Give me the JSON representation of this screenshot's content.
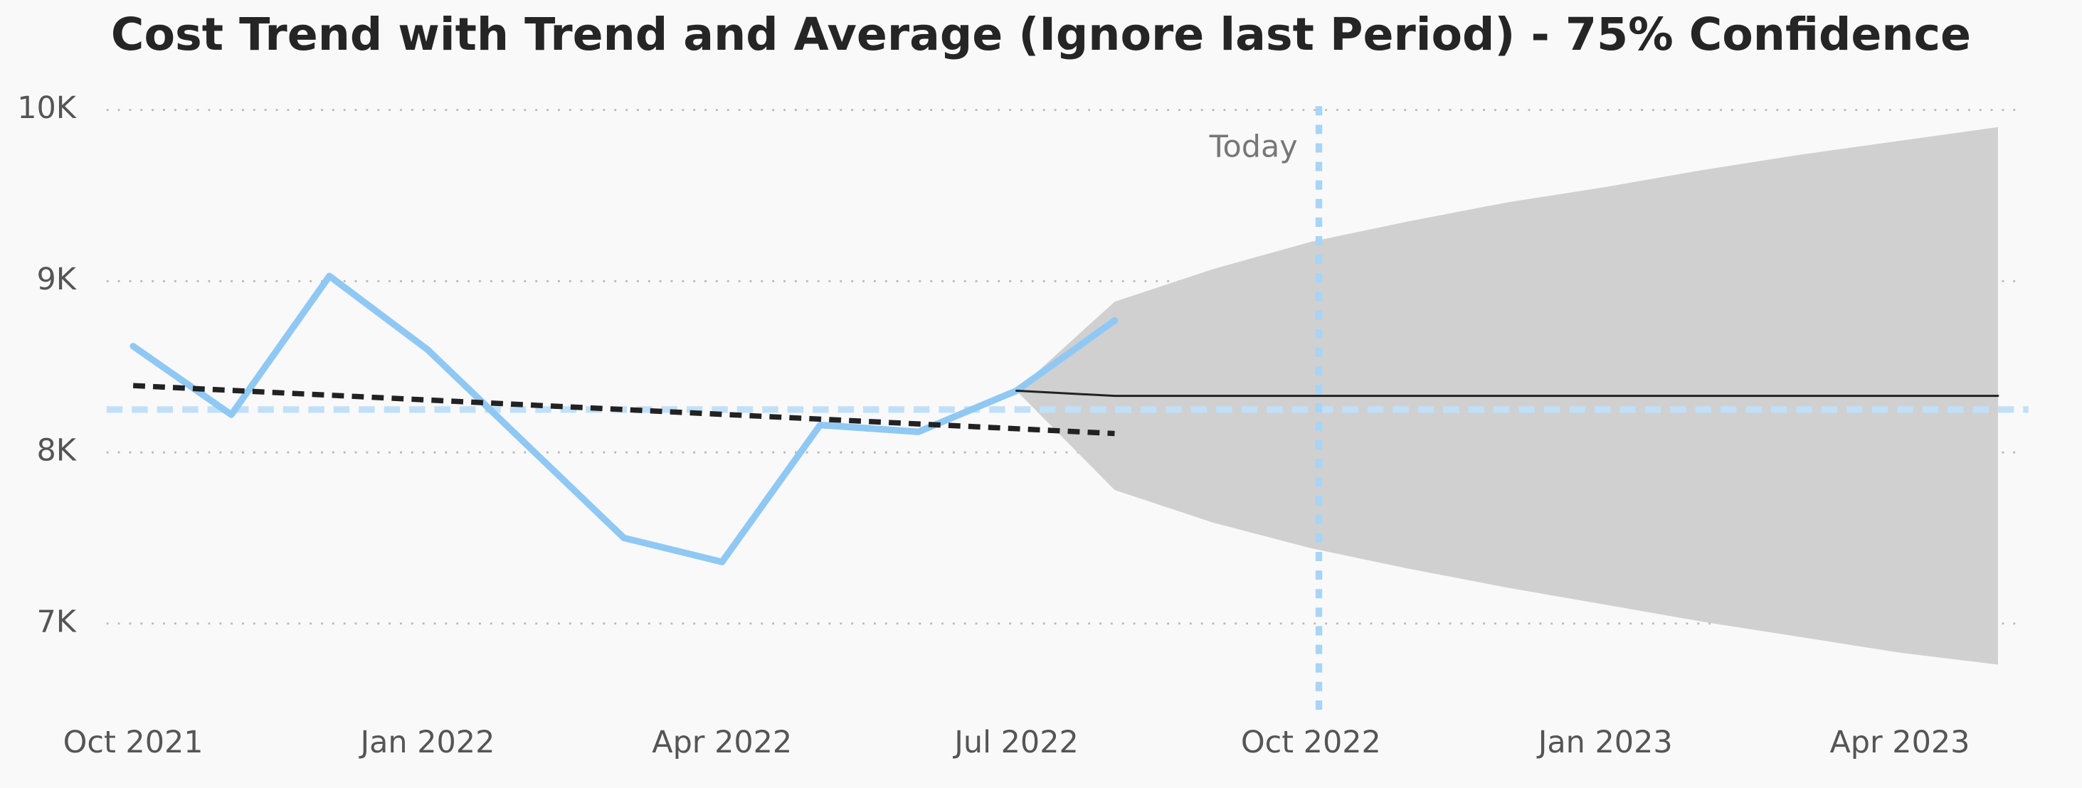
{
  "chart_data": {
    "type": "line",
    "title": "Cost Trend with Trend and Average (Ignore last Period) - 75% Confidence",
    "x": [
      "2021-10",
      "2021-11",
      "2021-12",
      "2022-01",
      "2022-02",
      "2022-03",
      "2022-04",
      "2022-05",
      "2022-06",
      "2022-07",
      "2022-08",
      "2022-09",
      "2022-10",
      "2022-11",
      "2022-12",
      "2023-01",
      "2023-02",
      "2023-03",
      "2023-04",
      "2023-05"
    ],
    "xlim": [
      "2021-10",
      "2023-05"
    ],
    "xticks": [
      {
        "value": "2021-10",
        "label": "Oct 2021"
      },
      {
        "value": "2022-01",
        "label": "Jan 2022"
      },
      {
        "value": "2022-04",
        "label": "Apr 2022"
      },
      {
        "value": "2022-07",
        "label": "Jul 2022"
      },
      {
        "value": "2022-10",
        "label": "Oct 2022"
      },
      {
        "value": "2023-01",
        "label": "Jan 2023"
      },
      {
        "value": "2023-04",
        "label": "Apr 2023"
      }
    ],
    "ylim": [
      6450,
      10100
    ],
    "yticks": [
      {
        "value": 7000,
        "label": "7K"
      },
      {
        "value": 8000,
        "label": "8K"
      },
      {
        "value": 9000,
        "label": "9K"
      },
      {
        "value": 10000,
        "label": "10K"
      }
    ],
    "grid": true,
    "series": [
      {
        "color": "#90c8f4",
        "width": 5,
        "dash": false,
        "values": [
          8620,
          8220,
          9030,
          8600,
          8050,
          7500,
          7360,
          8160,
          8120,
          8360,
          8770,
          null,
          null,
          null,
          null,
          null,
          null,
          null,
          null,
          null
        ]
      },
      {
        "color": "#222222",
        "width": 4,
        "dash": true,
        "values": [
          8390,
          8362,
          8334,
          8306,
          8278,
          8250,
          8222,
          8194,
          8166,
          8138,
          8110,
          null,
          null,
          null,
          null,
          null,
          null,
          null,
          null,
          null
        ]
      },
      {
        "color": "#222222",
        "width": 1.6,
        "dash": false,
        "values": [
          null,
          null,
          null,
          null,
          null,
          null,
          null,
          null,
          null,
          8360,
          8330,
          8330,
          8330,
          8330,
          8330,
          8330,
          8330,
          8330,
          8330,
          8330
        ]
      }
    ],
    "band": {
      "color": "#d0d0d0",
      "upper": [
        null,
        null,
        null,
        null,
        null,
        null,
        null,
        null,
        null,
        8360,
        8880,
        9070,
        9230,
        9350,
        9460,
        9550,
        9650,
        9740,
        9820,
        9900
      ],
      "lower": [
        null,
        null,
        null,
        null,
        null,
        null,
        null,
        null,
        null,
        8360,
        7780,
        7590,
        7440,
        7320,
        7210,
        7110,
        7010,
        6920,
        6830,
        6760
      ]
    },
    "average": {
      "value": 8250,
      "color": "#bfe0f8"
    },
    "today": {
      "value": "2022-10",
      "label": "Today",
      "color": "#a8d4f5"
    }
  }
}
